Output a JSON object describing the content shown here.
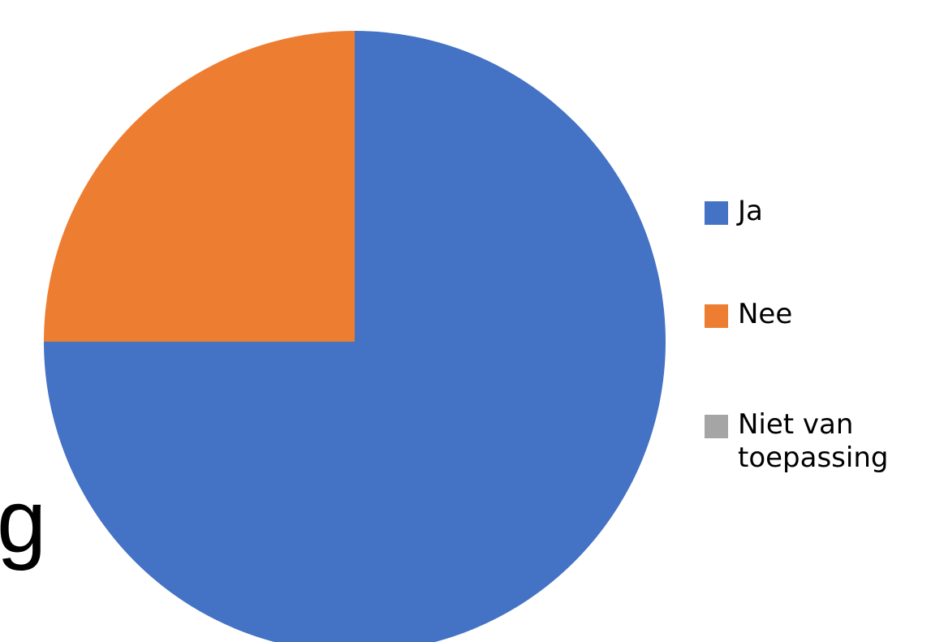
{
  "chart_data": {
    "type": "pie",
    "title": "",
    "categories": [
      "Ja",
      "Nee",
      "Niet van toepassing"
    ],
    "values": [
      75,
      25,
      0
    ],
    "colors": [
      "#4472C4",
      "#ED7D31",
      "#A5A5A5"
    ],
    "legend_position": "right",
    "legend": {
      "items": [
        {
          "label": "Ja"
        },
        {
          "label": "Nee"
        },
        {
          "label": "Niet van toepassing"
        }
      ]
    }
  },
  "background_text": "g"
}
